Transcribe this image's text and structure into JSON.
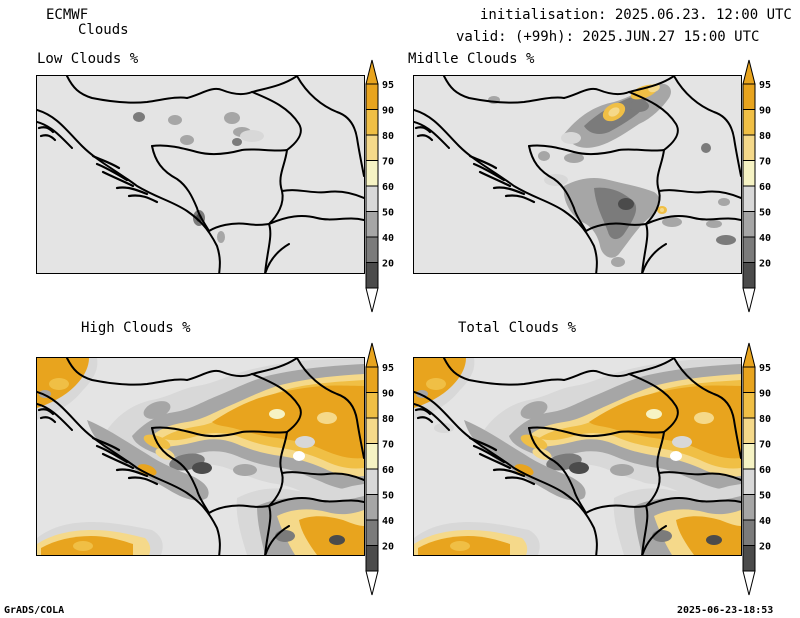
{
  "header": {
    "model": "ECMWF",
    "product": "Clouds",
    "init": "initialisation: 2025.06.23. 12:00 UTC",
    "valid": "valid: (+99h): 2025.JUN.27 15:00 UTC"
  },
  "panels": [
    {
      "title": "Low Clouds %",
      "coverage": "low"
    },
    {
      "title": "Midlle Clouds %",
      "coverage": "mid"
    },
    {
      "title": "High Clouds %",
      "coverage": "high"
    },
    {
      "title": "Total Clouds %",
      "coverage": "total"
    }
  ],
  "colorbar": {
    "levels": [
      "95",
      "90",
      "80",
      "70",
      "60",
      "50",
      "40",
      "20"
    ],
    "colors": [
      "#e8a41e",
      "#f0bf45",
      "#f5d98a",
      "#f6f3c4",
      "#d8d8d8",
      "#a6a6a6",
      "#7b7b7b",
      "#4b4b4b"
    ],
    "top_color": "#e8a41e",
    "bottom_color": "#ffffff"
  },
  "footer": {
    "left": "GrADS/COLA",
    "right": "2025-06-23-18:53"
  }
}
